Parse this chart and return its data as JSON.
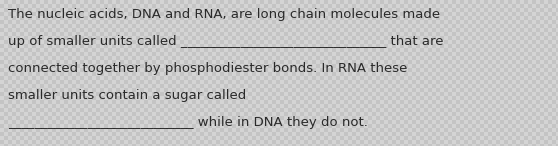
{
  "background_light": "#d4d4d4",
  "background_dark": "#c4c4c4",
  "text_color": "#2a2a2a",
  "line1": "The nucleic acids, DNA and RNA, are long chain molecules made",
  "line2_part1": "up of smaller units called ",
  "line2_blank": "_______________________________ ",
  "line2_part2": "that are",
  "line3": "connected together by phosphodiester bonds. In RNA these",
  "line4": "smaller units contain a sugar called",
  "line5_blank": "____________________________",
  "line5_part2": " while in DNA they do not.",
  "font_size": 9.5,
  "figsize": [
    5.58,
    1.46
  ],
  "dpi": 100,
  "checker_size": 4
}
